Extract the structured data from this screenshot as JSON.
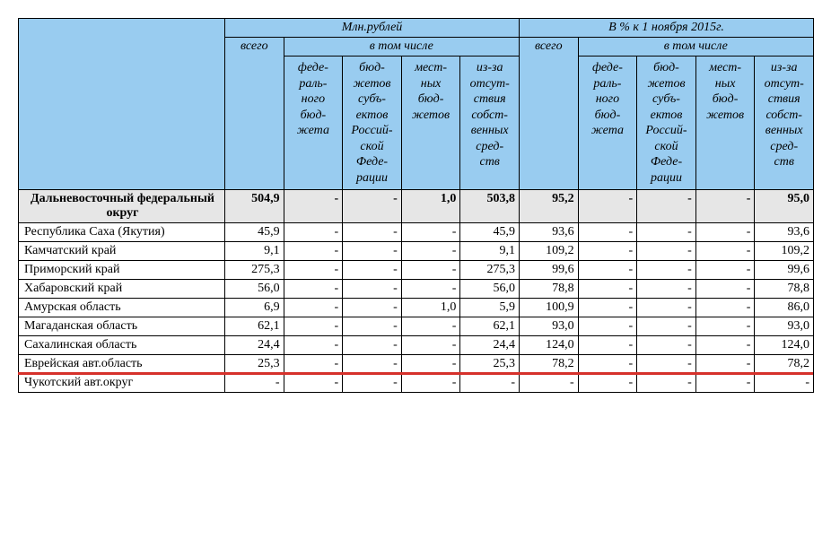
{
  "table": {
    "headers": {
      "group_left": "Млн.рублей",
      "group_right": "В % к 1 ноября 2015г.",
      "total_col": "всего",
      "subgroup": "в том числе",
      "sub_federal": "феде-<br>раль-<br>ного<br>бюд-<br>жета",
      "sub_regional": "бюд-<br>жетов<br>субъ-<br>ектов<br>Россий-<br>ской<br>Феде-<br>рации",
      "sub_local": "мест-<br>ных<br>бюд-<br>жетов",
      "sub_own": "из-за<br>отсут-<br>ствия<br>собст-<br>венных<br>сред-<br>ств"
    },
    "total_row": {
      "name": "Дальневосточный федеральный округ",
      "cells": [
        "504,9",
        "-",
        "-",
        "1,0",
        "503,8",
        "95,2",
        "-",
        "-",
        "-",
        "95,0"
      ]
    },
    "rows": [
      {
        "name": "Республика Саха (Якутия)",
        "cells": [
          "45,9",
          "-",
          "-",
          "-",
          "45,9",
          "93,6",
          "-",
          "-",
          "-",
          "93,6"
        ]
      },
      {
        "name": "Камчатский край",
        "cells": [
          "9,1",
          "-",
          "-",
          "-",
          "9,1",
          "109,2",
          "-",
          "-",
          "-",
          "109,2"
        ]
      },
      {
        "name": "Приморский край",
        "cells": [
          "275,3",
          "-",
          "-",
          "-",
          "275,3",
          "99,6",
          "-",
          "-",
          "-",
          "99,6"
        ]
      },
      {
        "name": "Хабаровский край",
        "cells": [
          "56,0",
          "-",
          "-",
          "-",
          "56,0",
          "78,8",
          "-",
          "-",
          "-",
          "78,8"
        ]
      },
      {
        "name": "Амурская область",
        "cells": [
          "6,9",
          "-",
          "-",
          "1,0",
          "5,9",
          "100,9",
          "-",
          "-",
          "-",
          "86,0"
        ]
      },
      {
        "name": "Магаданская область",
        "cells": [
          "62,1",
          "-",
          "-",
          "-",
          "62,1",
          "93,0",
          "-",
          "-",
          "-",
          "93,0"
        ]
      },
      {
        "name": "Сахалинская область",
        "cells": [
          "24,4",
          "-",
          "-",
          "-",
          "24,4",
          "124,0",
          "-",
          "-",
          "-",
          "124,0"
        ]
      },
      {
        "name": "Еврейская авт.область",
        "cells": [
          "25,3",
          "-",
          "-",
          "-",
          "25,3",
          "78,2",
          "-",
          "-",
          "-",
          "78,2"
        ],
        "highlight": true
      },
      {
        "name": "Чукотский авт.округ",
        "cells": [
          "-",
          "-",
          "-",
          "-",
          "-",
          "-",
          "-",
          "-",
          "-",
          "-"
        ]
      }
    ],
    "colors": {
      "header_bg": "#99ccf0",
      "totalrow_bg": "#e6e6e6",
      "highlight": "#d6312b",
      "border": "#000000",
      "background": "#ffffff"
    }
  }
}
